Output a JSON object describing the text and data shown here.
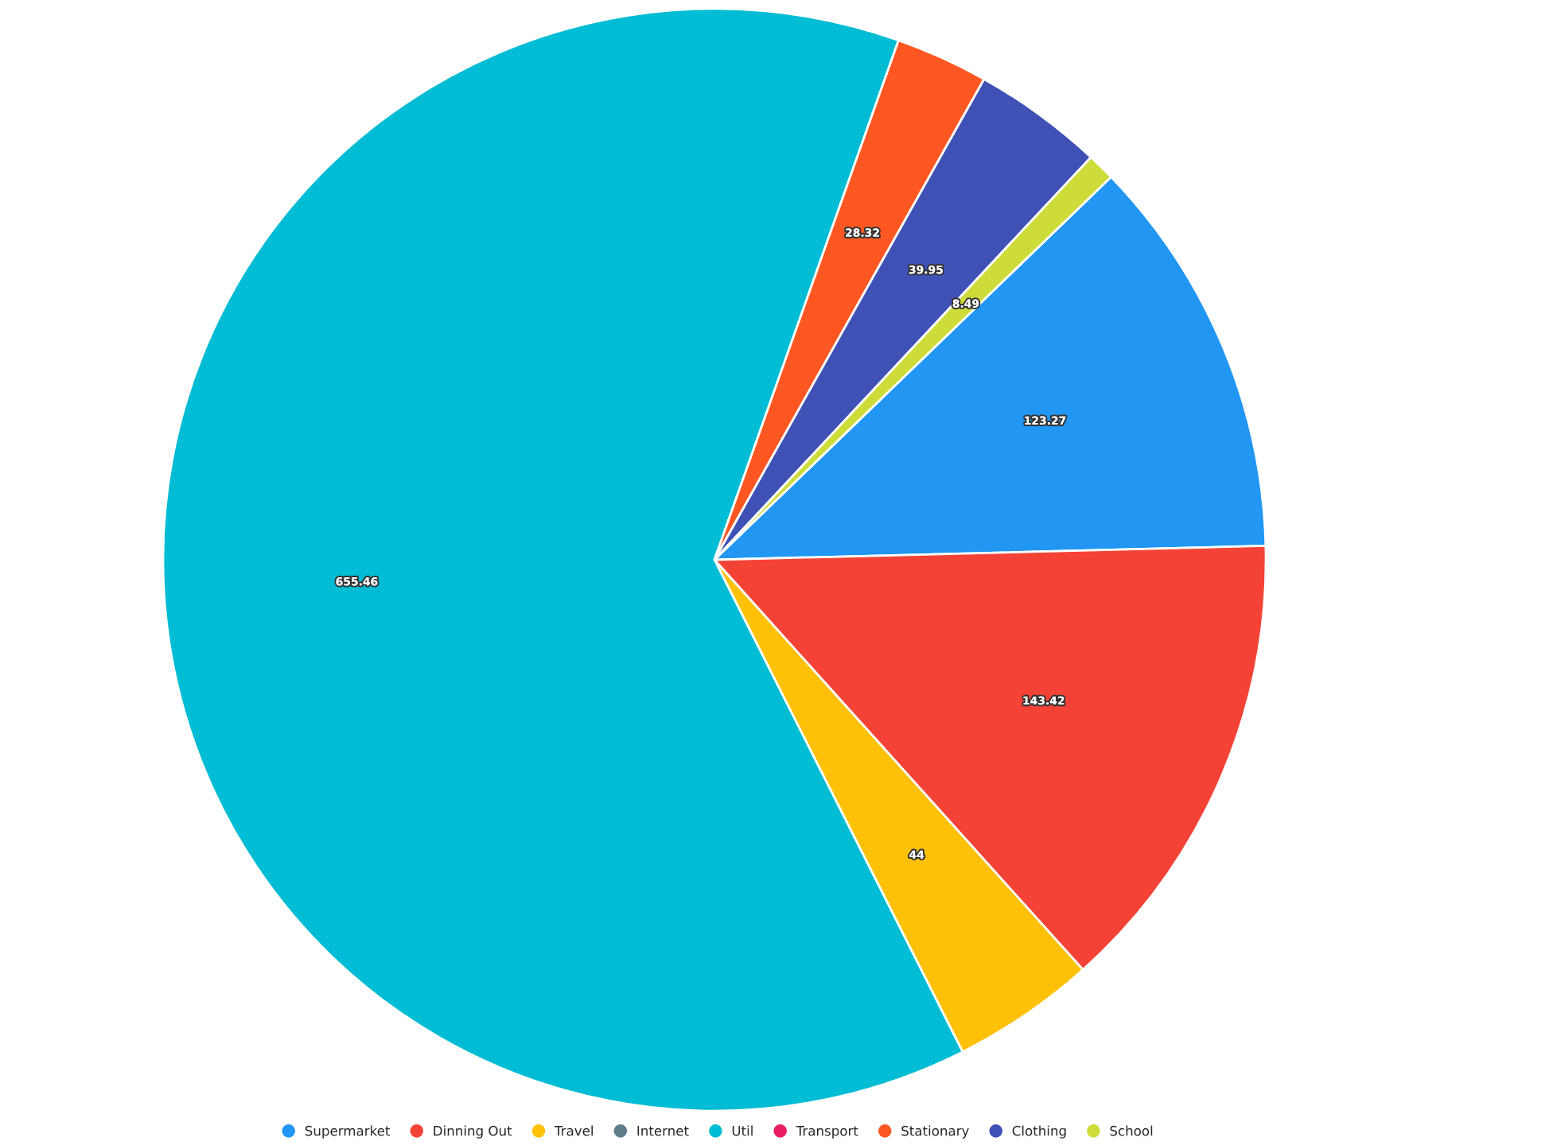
{
  "chart_data": {
    "type": "pie",
    "categories": [
      "Supermarket",
      "Dinning Out",
      "Travel",
      "Internet",
      "Util",
      "Transport",
      "Stationary",
      "Clothing",
      "School"
    ],
    "values": [
      123.27,
      143.42,
      44,
      null,
      655.46,
      null,
      28.32,
      39.95,
      8.49
    ],
    "colors": [
      "#2196f3",
      "#f44336",
      "#ffc107",
      "#607d8b",
      "#00bcd4",
      "#e91e63",
      "#ff5722",
      "#3f51b5",
      "#cddc39"
    ],
    "value_labels": [
      "123.27",
      "143.42",
      "44",
      null,
      "655.46",
      null,
      "28.32",
      "39.95",
      "8.49"
    ],
    "legend": "bottom"
  }
}
